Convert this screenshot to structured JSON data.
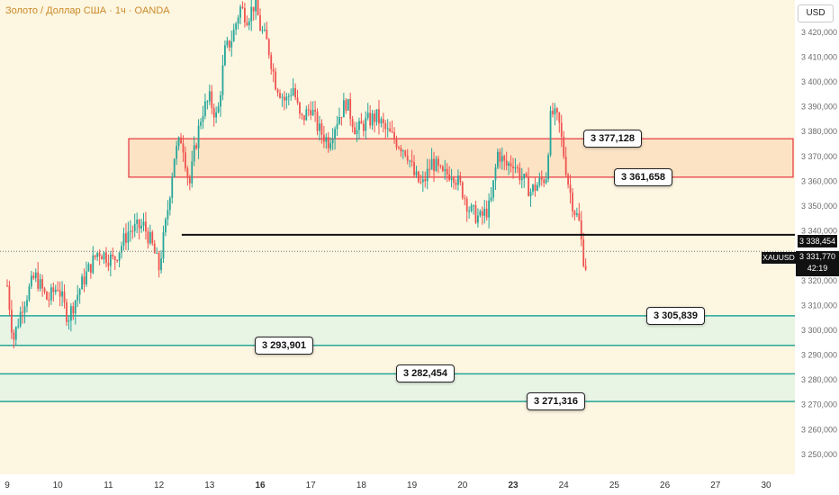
{
  "header": {
    "title": "Золото / Доллар США · 1ч · OANDA"
  },
  "toolbar": {
    "currency_button": "USD"
  },
  "symbol_tag": "XAUUSD",
  "last_price": {
    "value": "3 331,770",
    "countdown": "42:19"
  },
  "horizontal_line": {
    "label": "3 338,454",
    "value": 3338.454,
    "color": "#111111"
  },
  "colors": {
    "up": "#26a69a",
    "down": "#ef5350",
    "resistance": "#e8404a",
    "support": "#26a69a",
    "resistance_fill": "#fbe3c4",
    "support_fill": "#e8f4e4"
  },
  "zones": [
    {
      "type": "resistance",
      "top": 3377.128,
      "bottom": 3361.658
    },
    {
      "type": "support",
      "top": 3305.839,
      "bottom": 3293.901
    },
    {
      "type": "support",
      "top": 3282.454,
      "bottom": 3271.316
    }
  ],
  "zone_labels": [
    {
      "text": "3 377,128",
      "value": 3377.128
    },
    {
      "text": "3 361,658",
      "value": 3361.658
    },
    {
      "text": "3 305,839",
      "value": 3305.839
    },
    {
      "text": "3 293,901",
      "value": 3293.901
    },
    {
      "text": "3 282,454",
      "value": 3282.454
    },
    {
      "text": "3 271,316",
      "value": 3271.316
    }
  ],
  "chart_data": {
    "type": "candlestick",
    "title": "Золото / Доллар США · 1ч · OANDA",
    "ylim": [
      3242,
      3433
    ],
    "y_ticks": [
      "3 250,000",
      "3 260,000",
      "3 270,000",
      "3 280,000",
      "3 290,000",
      "3 300,000",
      "3 310,000",
      "3 320,000",
      "3 330,000",
      "3 340,000",
      "3 350,000",
      "3 360,000",
      "3 370,000",
      "3 380,000",
      "3 390,000",
      "3 400,000",
      "3 410,000",
      "3 420,000"
    ],
    "y_tick_values": [
      3250,
      3260,
      3270,
      3280,
      3290,
      3300,
      3310,
      3320,
      3330,
      3340,
      3350,
      3360,
      3370,
      3380,
      3390,
      3400,
      3410,
      3420
    ],
    "x_ticks": [
      "9",
      "10",
      "11",
      "12",
      "13",
      "16",
      "17",
      "18",
      "19",
      "20",
      "23",
      "24",
      "25",
      "26",
      "27",
      "30"
    ],
    "x_tick_days": [
      0,
      1,
      2,
      3,
      4,
      5,
      6,
      7,
      8,
      9,
      10,
      11,
      12,
      13,
      14,
      15
    ],
    "x_tick_bold": [
      false,
      false,
      false,
      false,
      false,
      true,
      false,
      false,
      false,
      false,
      true,
      false,
      false,
      false,
      false,
      false
    ],
    "anchors": [
      [
        0,
        3318
      ],
      [
        0.12,
        3296
      ],
      [
        0.3,
        3310
      ],
      [
        0.55,
        3322
      ],
      [
        0.8,
        3312
      ],
      [
        1.0,
        3318
      ],
      [
        1.2,
        3305
      ],
      [
        1.5,
        3320
      ],
      [
        1.8,
        3332
      ],
      [
        2.1,
        3328
      ],
      [
        2.4,
        3340
      ],
      [
        2.7,
        3342
      ],
      [
        2.85,
        3335
      ],
      [
        3.0,
        3325
      ],
      [
        3.15,
        3345
      ],
      [
        3.3,
        3370
      ],
      [
        3.45,
        3378
      ],
      [
        3.6,
        3358
      ],
      [
        3.7,
        3372
      ],
      [
        3.85,
        3388
      ],
      [
        4.0,
        3393
      ],
      [
        4.15,
        3385
      ],
      [
        4.3,
        3412
      ],
      [
        4.45,
        3418
      ],
      [
        4.6,
        3430
      ],
      [
        4.75,
        3426
      ],
      [
        4.9,
        3432
      ],
      [
        5.0,
        3422
      ],
      [
        5.15,
        3415
      ],
      [
        5.3,
        3400
      ],
      [
        5.5,
        3392
      ],
      [
        5.65,
        3398
      ],
      [
        5.8,
        3384
      ],
      [
        6.0,
        3390
      ],
      [
        6.15,
        3381
      ],
      [
        6.35,
        3376
      ],
      [
        6.5,
        3384
      ],
      [
        6.7,
        3392
      ],
      [
        6.9,
        3380
      ],
      [
        7.1,
        3384
      ],
      [
        7.3,
        3386
      ],
      [
        7.5,
        3380
      ],
      [
        7.7,
        3376
      ],
      [
        7.9,
        3372
      ],
      [
        8.05,
        3362
      ],
      [
        8.2,
        3358
      ],
      [
        8.4,
        3368
      ],
      [
        8.6,
        3362
      ],
      [
        8.8,
        3364
      ],
      [
        9.0,
        3356
      ],
      [
        9.15,
        3348
      ],
      [
        9.35,
        3345
      ],
      [
        9.55,
        3350
      ],
      [
        9.7,
        3372
      ],
      [
        9.85,
        3366
      ],
      [
        10.0,
        3368
      ],
      [
        10.15,
        3362
      ],
      [
        10.35,
        3356
      ],
      [
        10.55,
        3360
      ],
      [
        10.65,
        3362
      ],
      [
        10.75,
        3388
      ],
      [
        10.9,
        3384
      ],
      [
        11.0,
        3371
      ],
      [
        11.1,
        3358
      ],
      [
        11.2,
        3349
      ],
      [
        11.3,
        3344
      ],
      [
        11.38,
        3330
      ],
      [
        11.45,
        3325
      ]
    ]
  }
}
